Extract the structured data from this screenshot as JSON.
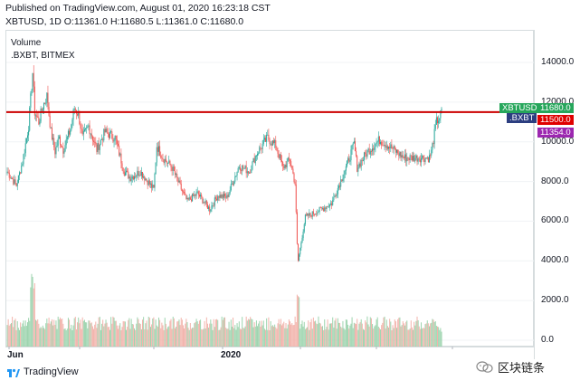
{
  "header": {
    "published": "Published on TradingView.com, August 01, 2020 16:23:18 CST",
    "ohlc": "XBTUSD, 1D O:11361.0 H:11680.5 L:11361.0 C:11680.0"
  },
  "legend": {
    "volume": "Volume",
    "bxbt": ".BXBT, BITMEX"
  },
  "price_tags": {
    "xbtusd_name": "XBTUSD",
    "xbtusd_value": "11680.0",
    "bxbt_name": ".BXBT",
    "line_value": "11500.0",
    "bxbt_value": "11354.0"
  },
  "brand": {
    "name": "TradingView"
  },
  "watermark": {
    "text": "区块链条"
  },
  "colors": {
    "up": "#26a69a",
    "down": "#ef5350",
    "vol_up": "#9dd4ae",
    "vol_down": "#f2b3ab",
    "hline": "#cc0000",
    "tag_green": "#26a65b",
    "tag_purple": "#9c27b0",
    "tag_red": "#e00000",
    "tag_navy": "#2c3e80"
  },
  "chart_data": {
    "type": "candlestick",
    "symbol": "XBTUSD",
    "interval": "1D",
    "ylim": [
      -500,
      15800
    ],
    "yticks": [
      0,
      2000,
      4000,
      6000,
      8000,
      10000,
      12000,
      14000
    ],
    "ytick_labels": [
      "0.0",
      "2000.0",
      "4000.0",
      "6000.0",
      "8000.0",
      "10000.0",
      "12000.0",
      "14000.0"
    ],
    "xticks": [
      "Jun",
      "2020"
    ],
    "horizontal_line": 11500,
    "price_series_points": [
      [
        "2019-06-01",
        8500
      ],
      [
        "2019-06-10",
        7800
      ],
      [
        "2019-06-16",
        9000
      ],
      [
        "2019-06-22",
        10800
      ],
      [
        "2019-06-26",
        13500
      ],
      [
        "2019-06-28",
        11500
      ],
      [
        "2019-07-02",
        11000
      ],
      [
        "2019-07-06",
        11800
      ],
      [
        "2019-07-10",
        12300
      ],
      [
        "2019-07-14",
        10500
      ],
      [
        "2019-07-18",
        9500
      ],
      [
        "2019-07-22",
        10200
      ],
      [
        "2019-07-26",
        9600
      ],
      [
        "2019-08-02",
        10600
      ],
      [
        "2019-08-06",
        11700
      ],
      [
        "2019-08-10",
        11400
      ],
      [
        "2019-08-14",
        10200
      ],
      [
        "2019-08-20",
        10800
      ],
      [
        "2019-08-28",
        9600
      ],
      [
        "2019-09-05",
        10500
      ],
      [
        "2019-09-15",
        10200
      ],
      [
        "2019-09-24",
        8500
      ],
      [
        "2019-09-30",
        8200
      ],
      [
        "2019-10-10",
        8500
      ],
      [
        "2019-10-23",
        7600
      ],
      [
        "2019-10-26",
        9800
      ],
      [
        "2019-11-01",
        9200
      ],
      [
        "2019-11-10",
        8700
      ],
      [
        "2019-11-20",
        7500
      ],
      [
        "2019-11-25",
        7000
      ],
      [
        "2019-12-05",
        7400
      ],
      [
        "2019-12-17",
        6600
      ],
      [
        "2019-12-25",
        7300
      ],
      [
        "2020-01-03",
        7200
      ],
      [
        "2020-01-15",
        8800
      ],
      [
        "2020-01-25",
        8500
      ],
      [
        "2020-02-01",
        9400
      ],
      [
        "2020-02-12",
        10200
      ],
      [
        "2020-02-20",
        9800
      ],
      [
        "2020-02-27",
        8700
      ],
      [
        "2020-03-05",
        9100
      ],
      [
        "2020-03-10",
        7900
      ],
      [
        "2020-03-12",
        4800
      ],
      [
        "2020-03-13",
        4000
      ],
      [
        "2020-03-20",
        6200
      ],
      [
        "2020-04-01",
        6500
      ],
      [
        "2020-04-15",
        6900
      ],
      [
        "2020-04-29",
        8700
      ],
      [
        "2020-05-07",
        9900
      ],
      [
        "2020-05-10",
        8700
      ],
      [
        "2020-05-20",
        9500
      ],
      [
        "2020-06-01",
        10100
      ],
      [
        "2020-06-10",
        9800
      ],
      [
        "2020-06-25",
        9200
      ],
      [
        "2020-07-10",
        9200
      ],
      [
        "2020-07-20",
        9200
      ],
      [
        "2020-07-22",
        9500
      ],
      [
        "2020-07-27",
        11000
      ],
      [
        "2020-07-31",
        11350
      ],
      [
        "2020-08-01",
        11680
      ]
    ],
    "volume_note": "Volume histogram shown below price; peaks near late June 2019 and mid-March 2020 (axis label 2000.0)"
  }
}
